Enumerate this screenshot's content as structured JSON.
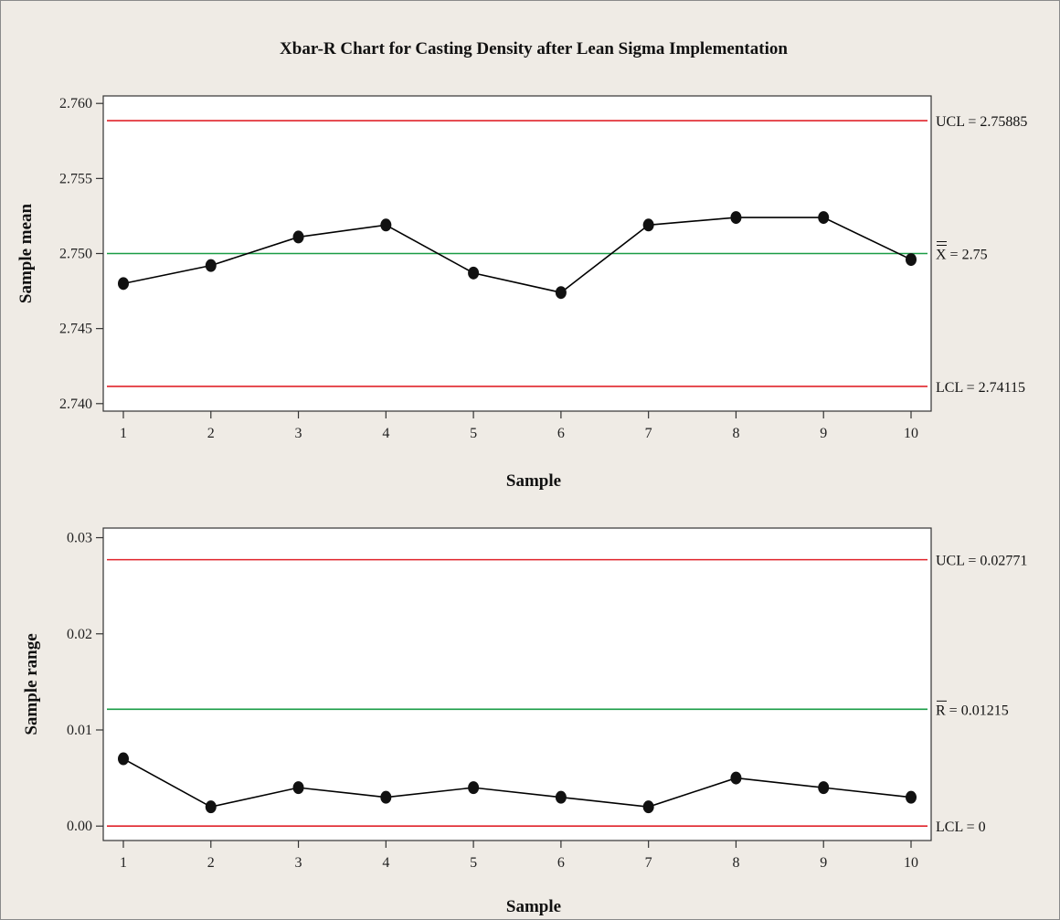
{
  "chart_data": {
    "title": "Xbar-R Chart for Casting Density after Lean Sigma Implementation",
    "charts": [
      {
        "type": "line",
        "name": "xbar",
        "xlabel": "Sample",
        "ylabel": "Sample mean",
        "x": [
          1,
          2,
          3,
          4,
          5,
          6,
          7,
          8,
          9,
          10
        ],
        "values": [
          2.748,
          2.7492,
          2.7511,
          2.7519,
          2.7487,
          2.7474,
          2.7519,
          2.7524,
          2.7524,
          2.7496
        ],
        "ylim": [
          2.7395,
          2.7605
        ],
        "yticks": [
          2.76,
          2.755,
          2.75,
          2.745,
          2.74
        ],
        "ytick_labels": [
          "2.760",
          "2.755",
          "2.750",
          "2.745",
          "2.740"
        ],
        "limits": [
          {
            "kind": "ucl",
            "value": 2.75885,
            "label": "UCL = 2.75885",
            "color": "#e0232a"
          },
          {
            "kind": "center",
            "value": 2.75,
            "label": "X = 2.75",
            "bar": "double",
            "color": "#1a9c46"
          },
          {
            "kind": "lcl",
            "value": 2.74115,
            "label": "LCL = 2.74115",
            "color": "#e0232a"
          }
        ]
      },
      {
        "type": "line",
        "name": "range",
        "xlabel": "Sample",
        "ylabel": "Sample range",
        "x": [
          1,
          2,
          3,
          4,
          5,
          6,
          7,
          8,
          9,
          10
        ],
        "values": [
          0.007,
          0.002,
          0.004,
          0.003,
          0.004,
          0.003,
          0.002,
          0.005,
          0.004,
          0.003
        ],
        "ylim": [
          -0.0015,
          0.031
        ],
        "yticks": [
          0.03,
          0.02,
          0.01,
          0.0
        ],
        "ytick_labels": [
          "0.03",
          "0.02",
          "0.01",
          "0.00"
        ],
        "limits": [
          {
            "kind": "ucl",
            "value": 0.02771,
            "label": "UCL = 0.02771",
            "color": "#e0232a"
          },
          {
            "kind": "center",
            "value": 0.01215,
            "label": "R = 0.01215",
            "bar": "single",
            "color": "#1a9c46"
          },
          {
            "kind": "lcl",
            "value": 0,
            "label": "LCL = 0",
            "color": "#e0232a"
          }
        ]
      }
    ],
    "xtick_labels": [
      "1",
      "2",
      "3",
      "4",
      "5",
      "6",
      "7",
      "8",
      "9",
      "10"
    ],
    "grid": false,
    "line_color": "#000000",
    "marker_color": "#111111"
  }
}
